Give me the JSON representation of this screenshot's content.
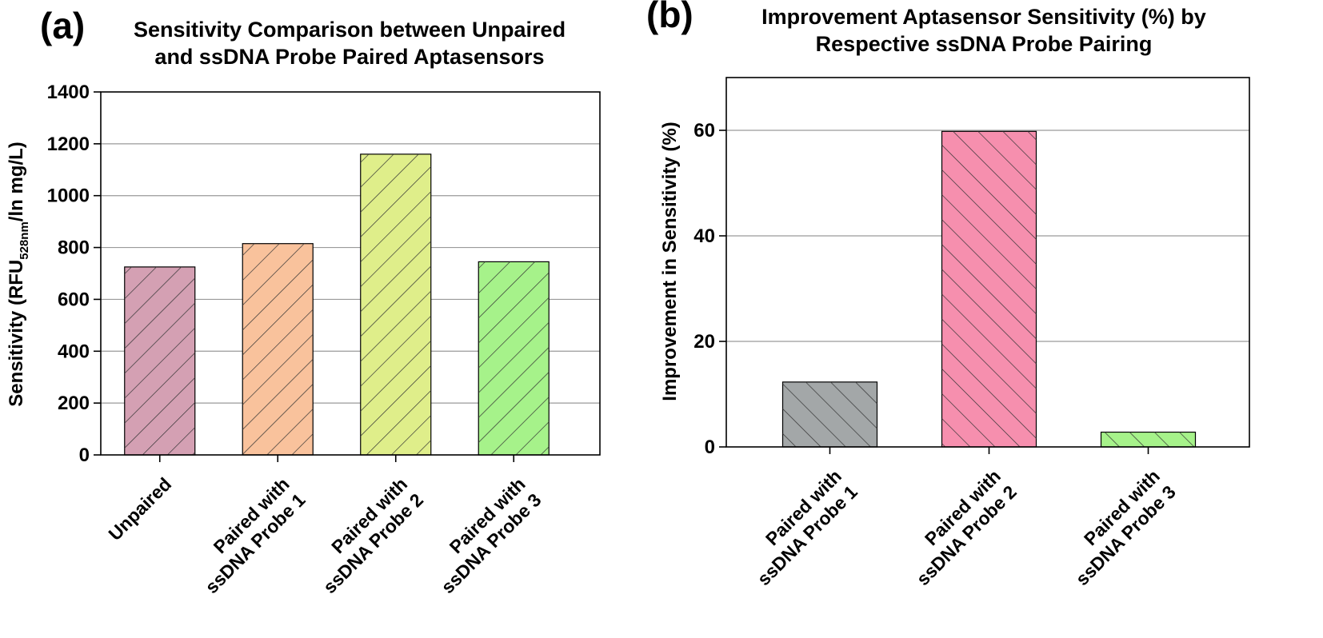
{
  "chart_data": [
    {
      "panel": "(a)",
      "type": "bar",
      "title": [
        "Sensitivity Comparison between Unpaired",
        "and ssDNA Probe Paired Aptasensors"
      ],
      "ylabel": {
        "main": "Sensitivity (RFU",
        "subscript": "528nm",
        "rest": "/ln mg/L)"
      },
      "xlabel": "",
      "ylim": [
        0,
        1400
      ],
      "yticks": [
        0,
        200,
        400,
        600,
        800,
        1000,
        1200,
        1400
      ],
      "grid": true,
      "categories": [
        [
          "Unpaired"
        ],
        [
          "Paired with",
          "ssDNA Probe 1"
        ],
        [
          "Paired with",
          "ssDNA Probe 2"
        ],
        [
          "Paired with",
          "ssDNA Probe 3"
        ]
      ],
      "values": [
        725,
        815,
        1160,
        745
      ],
      "colors": [
        "#d4a0b3",
        "#f9c29c",
        "#dfee8a",
        "#a6f28a"
      ],
      "hatch": "backslash"
    },
    {
      "panel": "(b)",
      "type": "bar",
      "title": [
        "Improvement Aptasensor Sensitivity (%) by",
        "Respective ssDNA Probe Pairing"
      ],
      "ylabel": {
        "main": "Improvement in Sensitivity (%)"
      },
      "xlabel": "",
      "ylim": [
        0,
        70
      ],
      "yticks": [
        0,
        20,
        40,
        60
      ],
      "grid": true,
      "categories": [
        [
          "Paired with",
          "ssDNA Probe 1"
        ],
        [
          "Paired with",
          "ssDNA Probe 2"
        ],
        [
          "Paired with",
          "ssDNA Probe 3"
        ]
      ],
      "values": [
        12.3,
        59.8,
        2.8
      ],
      "colors": [
        "#a3a7a8",
        "#f68fae",
        "#a6f28a"
      ],
      "hatch": "slash"
    }
  ]
}
